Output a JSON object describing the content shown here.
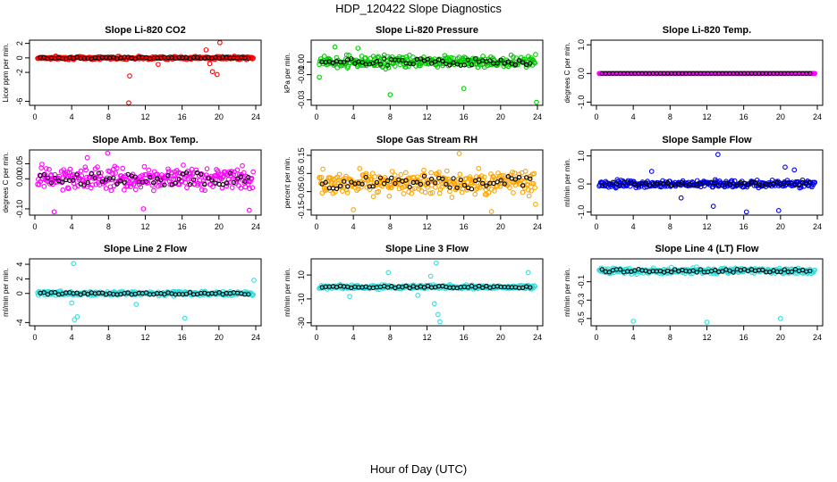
{
  "figure": {
    "title": "HDP_120422  Slope Diagnostics",
    "xlabel": "Hour of Day (UTC)"
  },
  "chart_data": [
    {
      "type": "scatter",
      "title": "Slope Li-820 CO2",
      "ylabel": "Licor ppm per min.",
      "xlim": [
        0,
        24
      ],
      "ylim": [
        -6.3,
        2.2
      ],
      "xticks": [
        0,
        4,
        8,
        12,
        16,
        20,
        24
      ],
      "yticks": [
        -6,
        -2,
        0,
        2
      ],
      "ytick_labels": [
        "-6",
        "-2",
        "0",
        "2"
      ],
      "primary_color": "#ff0000",
      "base": 0,
      "spread": 0.25,
      "outliers": [
        [
          10.2,
          -6.2
        ],
        [
          10.3,
          -2.5
        ],
        [
          18.6,
          1.1
        ],
        [
          19.3,
          -1.9
        ],
        [
          19.8,
          -2.3
        ],
        [
          20.1,
          2.1
        ],
        [
          13.4,
          -0.9
        ],
        [
          19.0,
          -0.8
        ]
      ]
    },
    {
      "type": "scatter",
      "title": "Slope Li-820 Pressure",
      "ylabel": "kPa per min.",
      "xlim": [
        0,
        24
      ],
      "ylim": [
        -0.033,
        0.016
      ],
      "xticks": [
        0,
        4,
        8,
        12,
        16,
        20,
        24
      ],
      "yticks": [
        -0.03,
        -0.01,
        0.0
      ],
      "ytick_labels": [
        "-0.03",
        "-0.01",
        "0.00"
      ],
      "primary_color": "#00cc00",
      "base": 0,
      "spread": 0.006,
      "outliers": [
        [
          8.0,
          -0.026
        ],
        [
          16.0,
          -0.021
        ],
        [
          23.9,
          -0.032
        ],
        [
          0.3,
          -0.012
        ],
        [
          2.0,
          0.012
        ],
        [
          4.5,
          0.011
        ],
        [
          23.8,
          0.006
        ]
      ]
    },
    {
      "type": "scatter",
      "title": "Slope Li-820 Temp.",
      "ylabel": "degrees C per min.",
      "xlim": [
        0,
        24
      ],
      "ylim": [
        -1.05,
        1.1
      ],
      "xticks": [
        0,
        4,
        8,
        12,
        16,
        20,
        24
      ],
      "yticks": [
        -1.0,
        0.0,
        1.0
      ],
      "ytick_labels": [
        "-1.0",
        "0.0",
        "1.0"
      ],
      "primary_color": "#ff00ff",
      "base": 0,
      "spread": 0.0,
      "outliers": []
    },
    {
      "type": "scatter",
      "title": "Slope Amb. Box Temp.",
      "ylabel": "degrees C per min.",
      "xlim": [
        0,
        24
      ],
      "ylim": [
        -0.115,
        0.09
      ],
      "xticks": [
        0,
        4,
        8,
        12,
        16,
        20,
        24
      ],
      "yticks": [
        -0.1,
        0.0,
        0.05
      ],
      "ytick_labels": [
        "-0.10",
        "0.00",
        "0.05"
      ],
      "primary_color": "#ff00ff",
      "base": 0,
      "spread": 0.045,
      "outliers": [
        [
          2.1,
          -0.11
        ],
        [
          7.9,
          0.085
        ],
        [
          11.8,
          -0.1
        ],
        [
          23.3,
          -0.105
        ],
        [
          5.7,
          0.07
        ]
      ]
    },
    {
      "type": "scatter",
      "title": "Slope Gas Stream RH",
      "ylabel": "percent per min.",
      "xlim": [
        0,
        24
      ],
      "ylim": [
        -0.17,
        0.17
      ],
      "xticks": [
        0,
        4,
        8,
        12,
        16,
        20,
        24
      ],
      "yticks": [
        -0.15,
        -0.05,
        0.05,
        0.15
      ],
      "ytick_labels": [
        "-0.15",
        "-0.05",
        "0.05",
        "0.15"
      ],
      "primary_color": "#ffa500",
      "base": 0,
      "spread": 0.08,
      "outliers": [
        [
          19.0,
          -0.16
        ],
        [
          15.5,
          0.16
        ],
        [
          4.0,
          -0.15
        ],
        [
          23.8,
          -0.12
        ]
      ]
    },
    {
      "type": "scatter",
      "title": "Slope Sample Flow",
      "ylabel": "ml/min per min.",
      "xlim": [
        0,
        24
      ],
      "ylim": [
        -1.05,
        1.15
      ],
      "xticks": [
        0,
        4,
        8,
        12,
        16,
        20,
        24
      ],
      "yticks": [
        -1.0,
        0.0,
        1.0
      ],
      "ytick_labels": [
        "-1.0",
        "0.0",
        "1.0"
      ],
      "primary_color": "#0000ff",
      "base": 0,
      "spread": 0.15,
      "outliers": [
        [
          13.2,
          1.05
        ],
        [
          16.3,
          -1.0
        ],
        [
          19.8,
          -0.95
        ],
        [
          12.7,
          -0.8
        ],
        [
          20.5,
          0.6
        ],
        [
          6.0,
          0.45
        ],
        [
          21.5,
          0.5
        ],
        [
          9.2,
          -0.5
        ]
      ]
    },
    {
      "type": "scatter",
      "title": "Slope Line 2 Flow",
      "ylabel": "ml/min per min.",
      "xlim": [
        0,
        24
      ],
      "ylim": [
        -4.2,
        4.5
      ],
      "xticks": [
        0,
        4,
        8,
        12,
        16,
        20,
        24
      ],
      "yticks": [
        -4,
        0,
        2,
        4
      ],
      "ytick_labels": [
        "-4",
        "0",
        "2",
        "4"
      ],
      "primary_color": "#33dddd",
      "base": 0,
      "spread": 0.35,
      "outliers": [
        [
          4.2,
          4.1
        ],
        [
          4.6,
          -3.2
        ],
        [
          4.3,
          -3.6
        ],
        [
          16.3,
          -3.4
        ],
        [
          4.0,
          -1.3
        ],
        [
          11.0,
          -1.5
        ],
        [
          23.8,
          1.8
        ]
      ]
    },
    {
      "type": "scatter",
      "title": "Slope Line 3 Flow",
      "ylabel": "ml/min per min.",
      "xlim": [
        0,
        24
      ],
      "ylim": [
        -31,
        22
      ],
      "xticks": [
        0,
        4,
        8,
        12,
        16,
        20,
        24
      ],
      "yticks": [
        -30,
        -10,
        10
      ],
      "ytick_labels": [
        "-30",
        "-10",
        "10"
      ],
      "primary_color": "#33dddd",
      "base": 0,
      "spread": 2.0,
      "outliers": [
        [
          13.0,
          20
        ],
        [
          13.2,
          -23
        ],
        [
          13.4,
          -29
        ],
        [
          12.4,
          9
        ],
        [
          7.8,
          12
        ],
        [
          23.0,
          12
        ],
        [
          12.8,
          -14
        ],
        [
          3.6,
          -8
        ],
        [
          11.0,
          -7
        ]
      ]
    },
    {
      "type": "scatter",
      "title": "Slope Line 4 (LT) Flow",
      "ylabel": "ml/min per min.",
      "xlim": [
        0,
        24
      ],
      "ylim": [
        -0.56,
        0.13
      ],
      "xticks": [
        0,
        4,
        8,
        12,
        16,
        20,
        24
      ],
      "yticks": [
        -0.5,
        -0.3,
        -0.1
      ],
      "ytick_labels": [
        "-0.5",
        "-0.3",
        "-0.1"
      ],
      "primary_color": "#33dddd",
      "base": 0.02,
      "spread": 0.04,
      "outliers": [
        [
          4.0,
          -0.53
        ],
        [
          12.0,
          -0.54
        ],
        [
          20.0,
          -0.5
        ]
      ]
    }
  ]
}
